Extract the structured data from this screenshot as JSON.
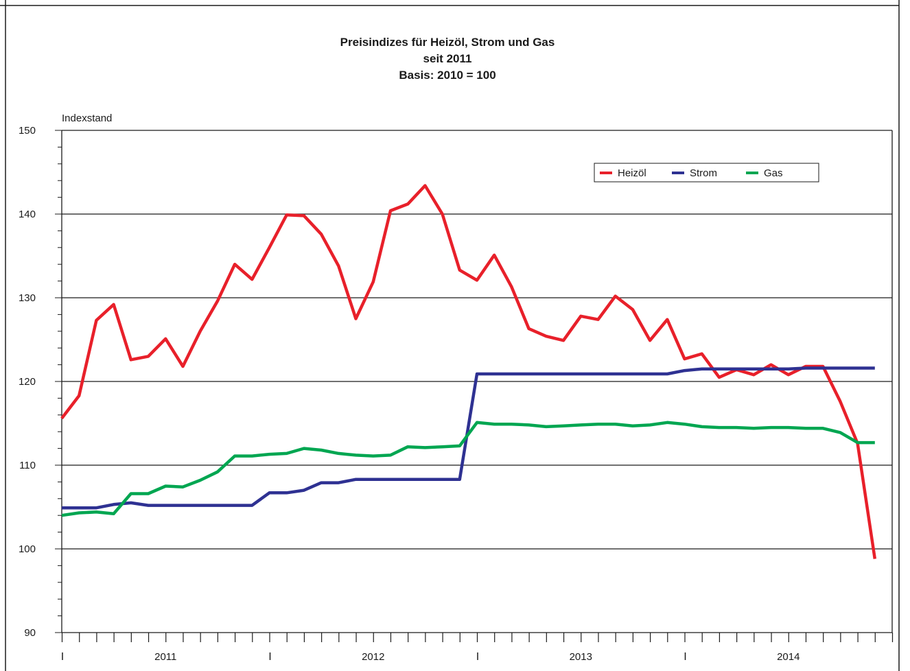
{
  "chart_data": {
    "type": "line",
    "title": "Preisindizes für Heizöl, Strom und Gas",
    "subtitle": "seit 2011",
    "subtitle2": "Basis: 2010 = 100",
    "ylabel": "Indexstand",
    "xlabel": "",
    "ylim": [
      90,
      150
    ],
    "yticks": [
      90,
      100,
      110,
      120,
      130,
      140,
      150
    ],
    "year_labels": [
      "2011",
      "2012",
      "2013",
      "2014"
    ],
    "grid": true,
    "legend_position": "top-right",
    "series": [
      {
        "name": "Heizöl",
        "color": "#e8202a",
        "values": [
          115.6,
          118.3,
          127.3,
          129.2,
          122.6,
          123.0,
          125.1,
          121.8,
          126.0,
          129.6,
          134.0,
          132.2,
          136.0,
          139.9,
          139.8,
          137.6,
          133.8,
          127.5,
          131.9,
          140.4,
          141.2,
          143.4,
          140.0,
          133.3,
          132.1,
          135.1,
          131.3,
          126.3,
          125.4,
          124.9,
          127.8,
          127.4,
          130.2,
          128.6,
          124.9,
          127.4,
          122.7,
          123.3,
          120.5,
          121.4,
          120.8,
          122.0,
          120.8,
          121.8,
          121.8,
          117.6,
          112.6,
          98.8
        ]
      },
      {
        "name": "Strom",
        "color": "#2e3192",
        "values": [
          104.9,
          104.9,
          104.9,
          105.3,
          105.5,
          105.2,
          105.2,
          105.2,
          105.2,
          105.2,
          105.2,
          105.2,
          106.7,
          106.7,
          107.0,
          107.9,
          107.9,
          108.3,
          108.3,
          108.3,
          108.3,
          108.3,
          108.3,
          108.3,
          120.9,
          120.9,
          120.9,
          120.9,
          120.9,
          120.9,
          120.9,
          120.9,
          120.9,
          120.9,
          120.9,
          120.9,
          121.3,
          121.5,
          121.5,
          121.5,
          121.5,
          121.5,
          121.5,
          121.6,
          121.6,
          121.6,
          121.6,
          121.6
        ]
      },
      {
        "name": "Gas",
        "color": "#00a651",
        "values": [
          104.0,
          104.3,
          104.4,
          104.2,
          106.6,
          106.6,
          107.5,
          107.4,
          108.2,
          109.2,
          111.1,
          111.1,
          111.3,
          111.4,
          112.0,
          111.8,
          111.4,
          111.2,
          111.1,
          111.2,
          112.2,
          112.1,
          112.2,
          112.3,
          115.1,
          114.9,
          114.9,
          114.8,
          114.6,
          114.7,
          114.8,
          114.9,
          114.9,
          114.7,
          114.8,
          115.1,
          114.9,
          114.6,
          114.5,
          114.5,
          114.4,
          114.5,
          114.5,
          114.4,
          114.4,
          113.9,
          112.7,
          112.7
        ]
      }
    ]
  }
}
